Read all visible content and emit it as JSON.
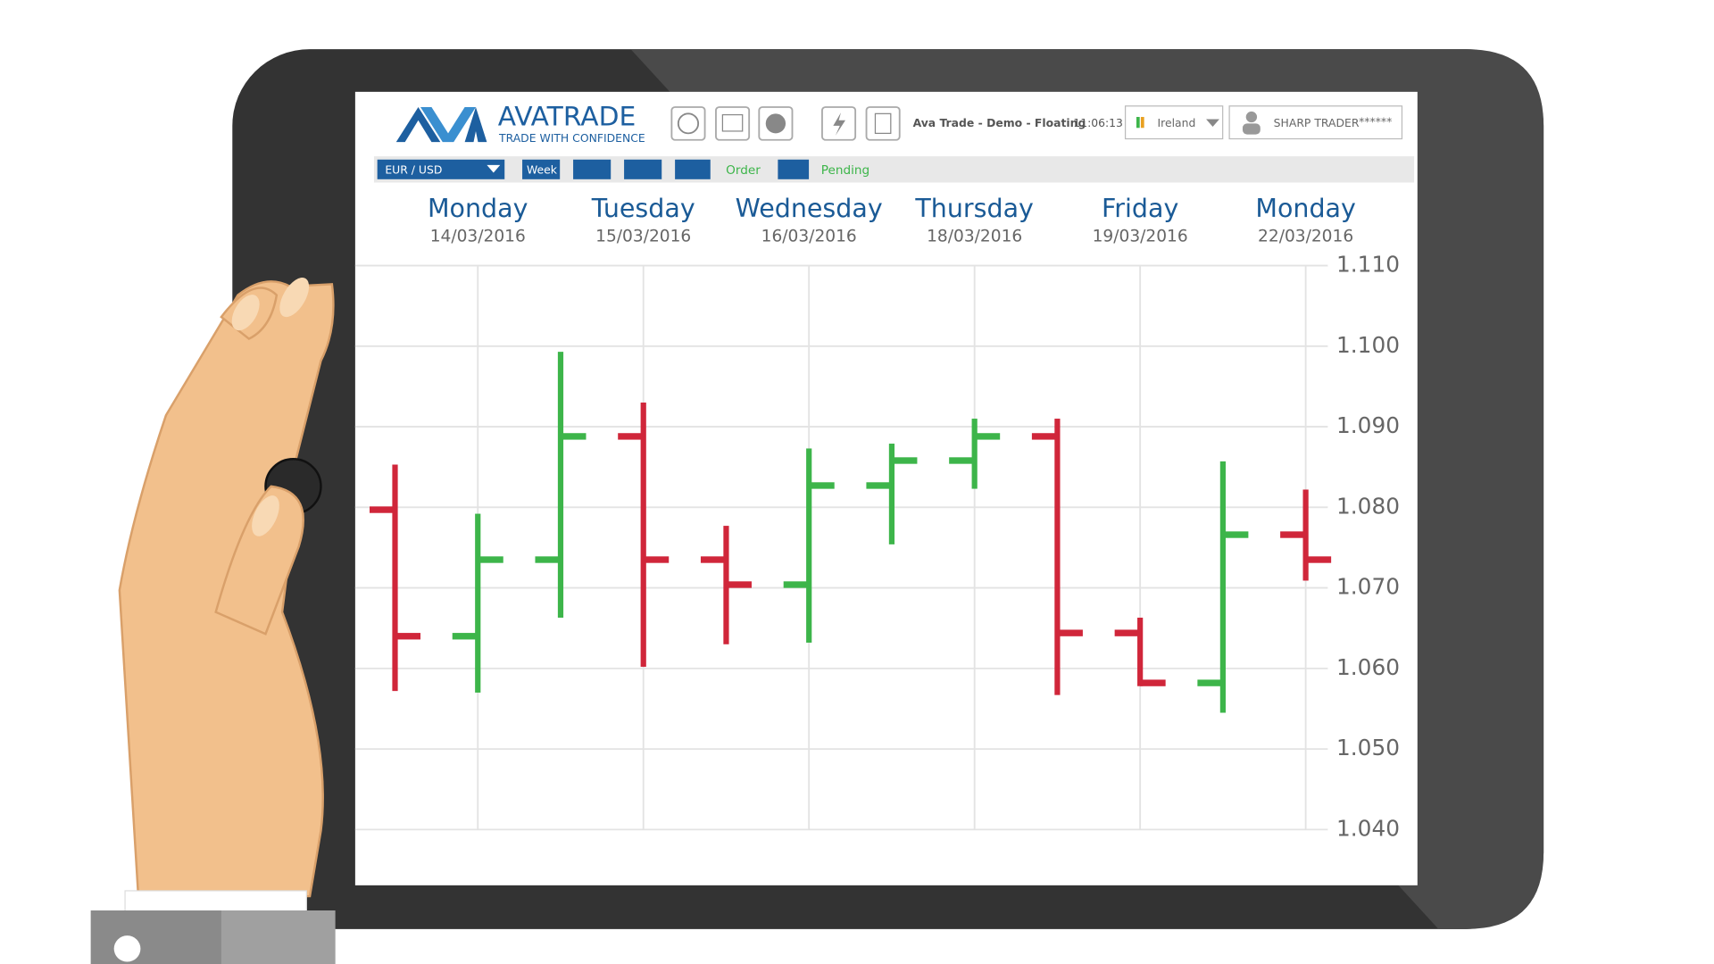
{
  "header": {
    "brand": "AVATRADE",
    "tagline": "TRADE WITH CONFIDENCE",
    "account": "Ava Trade - Demo - Floating",
    "time": "11:06:13",
    "country": "Ireland",
    "user": "SHARP TRADER",
    "password": "******"
  },
  "toolbar": {
    "symbol": "EUR / USD",
    "period": "Week",
    "order": "Order",
    "pending": "Pending"
  },
  "chart_data": {
    "type": "ohlc",
    "categories": [
      null,
      "Monday",
      null,
      "Tuesday",
      null,
      "Wednesday",
      null,
      "Thursday",
      null,
      "Friday",
      null,
      "Monday"
    ],
    "dates": [
      null,
      "14/03/2016",
      null,
      "15/03/2016",
      null,
      "16/03/2016",
      null,
      "18/03/2016",
      null,
      "19/03/2016",
      null,
      "22/03/2016"
    ],
    "open": [
      1.0797,
      1.064,
      1.0735,
      1.0888,
      1.0735,
      1.0704,
      1.0827,
      1.0858,
      1.0888,
      1.0644,
      1.0582,
      1.0766
    ],
    "high": [
      1.0853,
      1.0792,
      1.0993,
      1.093,
      1.0777,
      1.0873,
      1.0879,
      1.091,
      1.091,
      1.0663,
      1.0857,
      1.0822
    ],
    "low": [
      1.0572,
      1.057,
      1.0663,
      1.0602,
      1.063,
      1.0632,
      1.0754,
      1.0823,
      1.0567,
      1.0578,
      1.0545,
      1.0709
    ],
    "close": [
      1.064,
      1.0735,
      1.0888,
      1.0735,
      1.0704,
      1.0827,
      1.0858,
      1.0888,
      1.0644,
      1.0582,
      1.0766,
      1.0735
    ],
    "up_color": "#3db54a",
    "down_color": "#d0263a",
    "ylim": [
      1.04,
      1.11
    ],
    "yticks": [
      {
        "value": 1.11,
        "label": "1.110"
      },
      {
        "value": 1.1,
        "label": "1.100"
      },
      {
        "value": 1.09,
        "label": "1.090"
      },
      {
        "value": 1.08,
        "label": "1.080"
      },
      {
        "value": 1.07,
        "label": "1.070"
      },
      {
        "value": 1.06,
        "label": "1.060"
      },
      {
        "value": 1.05,
        "label": "1.050"
      },
      {
        "value": 1.04,
        "label": "1.040"
      }
    ],
    "grid": true
  }
}
